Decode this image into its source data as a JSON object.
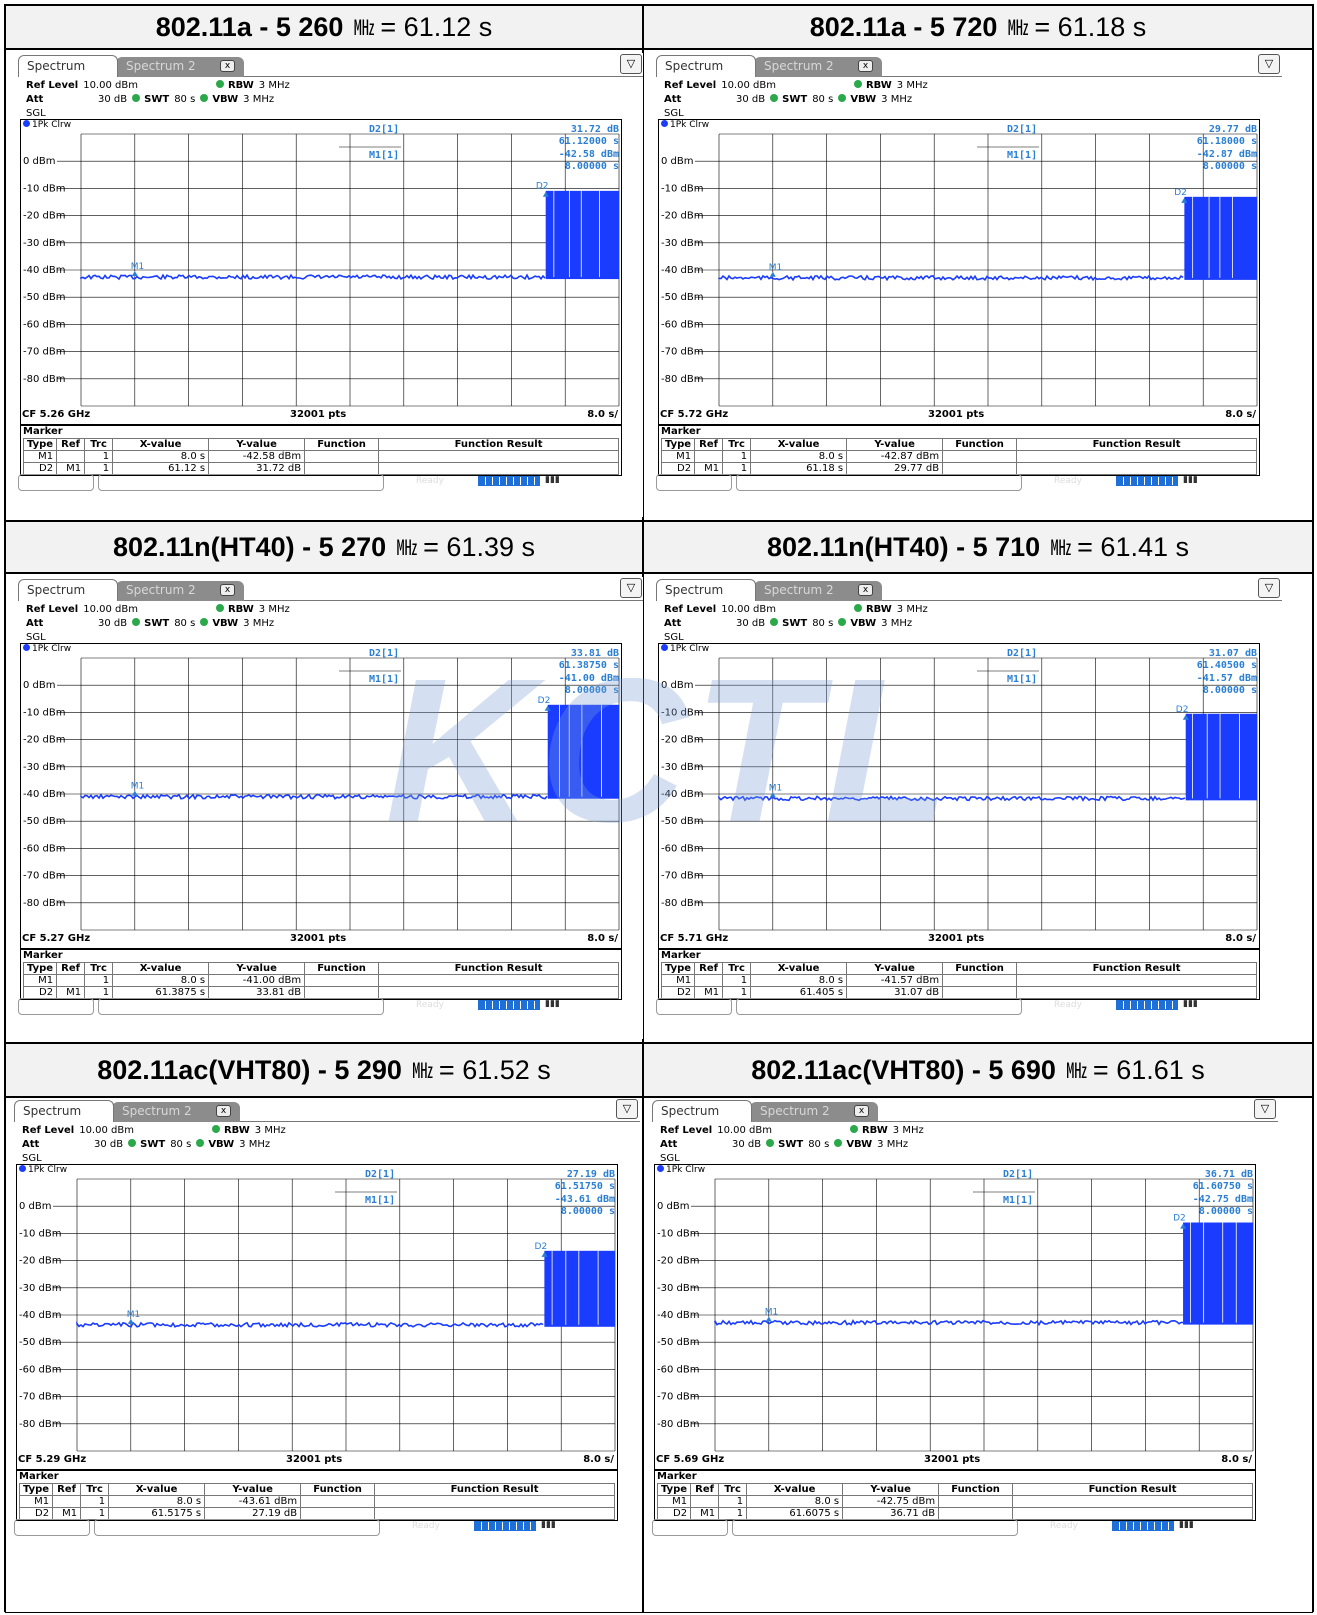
{
  "panels": [
    {
      "title": {
        "label": "802.11a - 5 260",
        "unit": "㎒",
        "value": "= 61.12 s"
      },
      "screen": {
        "tabs": [
          "Spectrum",
          "Spectrum 2"
        ],
        "ref_level": "10.00 dBm",
        "att": "30 dB",
        "swt": "80 s",
        "rbw": "3 MHz",
        "vbw": "3 MHz",
        "sgl": "SGL",
        "trace": "1Pk Clrw",
        "d2_label": "D2[1]",
        "d2_val1": "31.72 dB",
        "d2_val2": "61.12000 s",
        "m1_label": "M1[1]",
        "m1_val1": "-42.58 dBm",
        "m1_val2": "8.00000 s",
        "footer_left": "CF 5.26 GHz",
        "footer_mid": "32001 pts",
        "footer_right": "8.0 s/",
        "rows": [
          [
            "M1",
            "",
            "1",
            "8.0 s",
            "-42.58 dBm",
            "",
            ""
          ],
          [
            "D2",
            "M1",
            "1",
            "61.12 s",
            "31.72 dB",
            "",
            ""
          ]
        ]
      }
    },
    {
      "title": {
        "label": "802.11a - 5 720",
        "unit": "㎒",
        "value": "= 61.18 s"
      },
      "screen": {
        "tabs": [
          "Spectrum",
          "Spectrum 2"
        ],
        "ref_level": "10.00 dBm",
        "att": "30 dB",
        "swt": "80 s",
        "rbw": "3 MHz",
        "vbw": "3 MHz",
        "sgl": "SGL",
        "trace": "1Pk Clrw",
        "d2_label": "D2[1]",
        "d2_val1": "29.77 dB",
        "d2_val2": "61.18000 s",
        "m1_label": "M1[1]",
        "m1_val1": "-42.87 dBm",
        "m1_val2": "8.00000 s",
        "footer_left": "CF 5.72 GHz",
        "footer_mid": "32001 pts",
        "footer_right": "8.0 s/",
        "rows": [
          [
            "M1",
            "",
            "1",
            "8.0 s",
            "-42.87 dBm",
            "",
            ""
          ],
          [
            "D2",
            "M1",
            "1",
            "61.18 s",
            "29.77 dB",
            "",
            ""
          ]
        ]
      }
    },
    {
      "title": {
        "label": "802.11n(HT40) - 5 270",
        "unit": "㎒",
        "value": "= 61.39 s"
      },
      "screen": {
        "tabs": [
          "Spectrum",
          "Spectrum 2"
        ],
        "ref_level": "10.00 dBm",
        "att": "30 dB",
        "swt": "80 s",
        "rbw": "3 MHz",
        "vbw": "3 MHz",
        "sgl": "SGL",
        "trace": "1Pk Clrw",
        "d2_label": "D2[1]",
        "d2_val1": "33.81 dB",
        "d2_val2": "61.38750 s",
        "m1_label": "M1[1]",
        "m1_val1": "-41.00 dBm",
        "m1_val2": "8.00000 s",
        "footer_left": "CF 5.27 GHz",
        "footer_mid": "32001 pts",
        "footer_right": "8.0 s/",
        "rows": [
          [
            "M1",
            "",
            "1",
            "8.0 s",
            "-41.00 dBm",
            "",
            ""
          ],
          [
            "D2",
            "M1",
            "1",
            "61.3875 s",
            "33.81 dB",
            "",
            ""
          ]
        ]
      }
    },
    {
      "title": {
        "label": "802.11n(HT40) - 5 710",
        "unit": "㎒",
        "value": "= 61.41 s"
      },
      "screen": {
        "tabs": [
          "Spectrum",
          "Spectrum 2"
        ],
        "ref_level": "10.00 dBm",
        "att": "30 dB",
        "swt": "80 s",
        "rbw": "3 MHz",
        "vbw": "3 MHz",
        "sgl": "SGL",
        "trace": "1Pk Clrw",
        "d2_label": "D2[1]",
        "d2_val1": "31.07 dB",
        "d2_val2": "61.40500 s",
        "m1_label": "M1[1]",
        "m1_val1": "-41.57 dBm",
        "m1_val2": "8.00000 s",
        "footer_left": "CF 5.71 GHz",
        "footer_mid": "32001 pts",
        "footer_right": "8.0 s/",
        "rows": [
          [
            "M1",
            "",
            "1",
            "8.0 s",
            "-41.57 dBm",
            "",
            ""
          ],
          [
            "D2",
            "M1",
            "1",
            "61.405 s",
            "31.07 dB",
            "",
            ""
          ]
        ]
      }
    },
    {
      "title": {
        "label": "802.11ac(VHT80) - 5 290",
        "unit": "㎒",
        "value": "= 61.52 s"
      },
      "screen": {
        "tabs": [
          "Spectrum",
          "Spectrum 2"
        ],
        "ref_level": "10.00 dBm",
        "att": "30 dB",
        "swt": "80 s",
        "rbw": "3 MHz",
        "vbw": "3 MHz",
        "sgl": "SGL",
        "trace": "1Pk Clrw",
        "d2_label": "D2[1]",
        "d2_val1": "27.19 dB",
        "d2_val2": "61.51750 s",
        "m1_label": "M1[1]",
        "m1_val1": "-43.61 dBm",
        "m1_val2": "8.00000 s",
        "footer_left": "CF 5.29 GHz",
        "footer_mid": "32001 pts",
        "footer_right": "8.0 s/",
        "rows": [
          [
            "M1",
            "",
            "1",
            "8.0 s",
            "-43.61 dBm",
            "",
            ""
          ],
          [
            "D2",
            "M1",
            "1",
            "61.5175 s",
            "27.19 dB",
            "",
            ""
          ]
        ]
      }
    },
    {
      "title": {
        "label": "802.11ac(VHT80) - 5 690",
        "unit": "㎒",
        "value": "= 61.61 s"
      },
      "screen": {
        "tabs": [
          "Spectrum",
          "Spectrum 2"
        ],
        "ref_level": "10.00 dBm",
        "att": "30 dB",
        "swt": "80 s",
        "rbw": "3 MHz",
        "vbw": "3 MHz",
        "sgl": "SGL",
        "trace": "1Pk Clrw",
        "d2_label": "D2[1]",
        "d2_val1": "36.71 dB",
        "d2_val2": "61.60750 s",
        "m1_label": "M1[1]",
        "m1_val1": "-42.75 dBm",
        "m1_val2": "8.00000 s",
        "footer_left": "CF 5.69 GHz",
        "footer_mid": "32001 pts",
        "footer_right": "8.0 s/",
        "rows": [
          [
            "M1",
            "",
            "1",
            "8.0 s",
            "-42.75 dBm",
            "",
            ""
          ],
          [
            "D2",
            "M1",
            "1",
            "61.6075 s",
            "36.71 dB",
            "",
            ""
          ]
        ]
      }
    }
  ],
  "table_headers": [
    "Type",
    "Ref",
    "Trc",
    "X-value",
    "Y-value",
    "Function",
    "Function Result"
  ],
  "marker_caption": "Marker",
  "status_ready": "Ready",
  "watermark": "KCTL",
  "chart_data": [
    {
      "type": "line",
      "footer": "CF 5.26 GHz",
      "xlim": [
        0,
        80
      ],
      "ylim": [
        -90,
        10
      ],
      "y_ticks": [
        "0 dBm",
        "-10 dBm",
        "-20 dBm",
        "-30 dBm",
        "-40 dBm",
        "-50 dBm",
        "-60 dBm",
        "-70 dBm",
        "-80 dBm"
      ],
      "noise_floor_dbm": -42.6,
      "burst_start_s": 69.1,
      "burst_level_dbm": -10.9,
      "markers": [
        {
          "name": "M1",
          "x": 8.0,
          "y": -42.58
        },
        {
          "name": "D2",
          "x": 69.12,
          "y": -10.86
        }
      ]
    },
    {
      "type": "line",
      "footer": "CF 5.72 GHz",
      "xlim": [
        0,
        80
      ],
      "ylim": [
        -90,
        10
      ],
      "y_ticks": [
        "0 dBm",
        "-10 dBm",
        "-20 dBm",
        "-30 dBm",
        "-40 dBm",
        "-50 dBm",
        "-60 dBm",
        "-70 dBm",
        "-80 dBm"
      ],
      "noise_floor_dbm": -42.9,
      "burst_start_s": 69.2,
      "burst_level_dbm": -13.1,
      "markers": [
        {
          "name": "M1",
          "x": 8.0,
          "y": -42.87
        },
        {
          "name": "D2",
          "x": 69.18,
          "y": -13.1
        }
      ]
    },
    {
      "type": "line",
      "footer": "CF 5.27 GHz",
      "xlim": [
        0,
        80
      ],
      "ylim": [
        -90,
        10
      ],
      "y_ticks": [
        "0 dBm",
        "-10 dBm",
        "-20 dBm",
        "-30 dBm",
        "-40 dBm",
        "-50 dBm",
        "-60 dBm",
        "-70 dBm",
        "-80 dBm"
      ],
      "noise_floor_dbm": -41.0,
      "burst_start_s": 69.4,
      "burst_level_dbm": -7.2,
      "markers": [
        {
          "name": "M1",
          "x": 8.0,
          "y": -41.0
        },
        {
          "name": "D2",
          "x": 69.39,
          "y": -7.19
        }
      ]
    },
    {
      "type": "line",
      "footer": "CF 5.71 GHz",
      "xlim": [
        0,
        80
      ],
      "ylim": [
        -90,
        10
      ],
      "y_ticks": [
        "0 dBm",
        "-10 dBm",
        "-20 dBm",
        "-30 dBm",
        "-40 dBm",
        "-50 dBm",
        "-60 dBm",
        "-70 dBm",
        "-80 dBm"
      ],
      "noise_floor_dbm": -41.6,
      "burst_start_s": 69.4,
      "burst_level_dbm": -10.5,
      "markers": [
        {
          "name": "M1",
          "x": 8.0,
          "y": -41.57
        },
        {
          "name": "D2",
          "x": 69.41,
          "y": -10.5
        }
      ]
    },
    {
      "type": "line",
      "footer": "CF 5.29 GHz",
      "xlim": [
        0,
        80
      ],
      "ylim": [
        -90,
        10
      ],
      "y_ticks": [
        "0 dBm",
        "-10 dBm",
        "-20 dBm",
        "-30 dBm",
        "-40 dBm",
        "-50 dBm",
        "-60 dBm",
        "-70 dBm",
        "-80 dBm"
      ],
      "noise_floor_dbm": -43.6,
      "burst_start_s": 69.5,
      "burst_level_dbm": -16.4,
      "markers": [
        {
          "name": "M1",
          "x": 8.0,
          "y": -43.61
        },
        {
          "name": "D2",
          "x": 69.52,
          "y": -16.42
        }
      ]
    },
    {
      "type": "line",
      "footer": "CF 5.69 GHz",
      "xlim": [
        0,
        80
      ],
      "ylim": [
        -90,
        10
      ],
      "y_ticks": [
        "0 dBm",
        "-10 dBm",
        "-20 dBm",
        "-30 dBm",
        "-40 dBm",
        "-50 dBm",
        "-60 dBm",
        "-70 dBm",
        "-80 dBm"
      ],
      "noise_floor_dbm": -42.8,
      "burst_start_s": 69.6,
      "burst_level_dbm": -6.0,
      "markers": [
        {
          "name": "M1",
          "x": 8.0,
          "y": -42.75
        },
        {
          "name": "D2",
          "x": 69.61,
          "y": -6.04
        }
      ]
    }
  ]
}
